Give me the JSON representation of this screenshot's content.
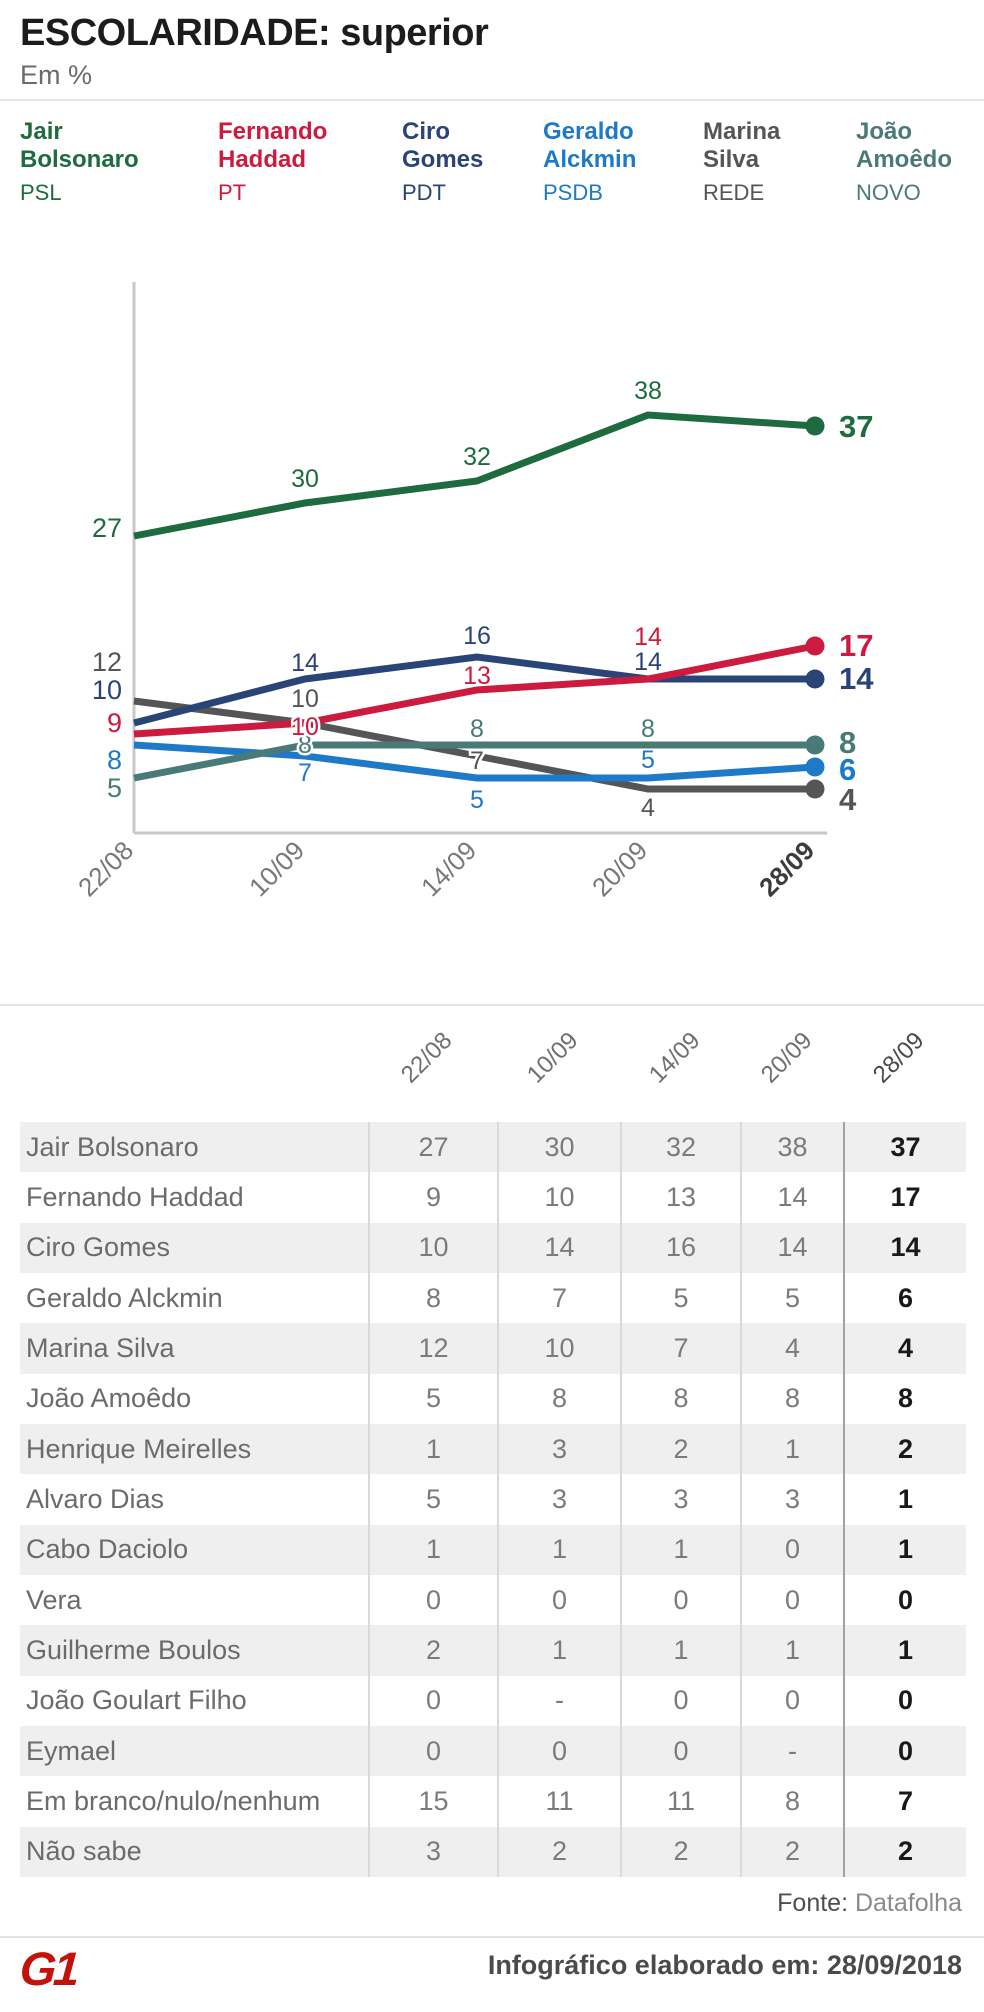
{
  "header": {
    "title": "ESCOLARIDADE: superior",
    "subtitle": "Em %"
  },
  "legend": [
    {
      "name_line1": "Jair",
      "name_line2": "Bolsonaro",
      "party": "PSL",
      "color": "#1e6b40"
    },
    {
      "name_line1": "Fernando",
      "name_line2": "Haddad",
      "party": "PT",
      "color": "#cc1b3f"
    },
    {
      "name_line1": "Ciro",
      "name_line2": "Gomes",
      "party": "PDT",
      "color": "#2a4477"
    },
    {
      "name_line1": "Geraldo",
      "name_line2": "Alckmin",
      "party": "PSDB",
      "color": "#1e79c6"
    },
    {
      "name_line1": "Marina",
      "name_line2": "Silva",
      "party": "REDE",
      "color": "#555555"
    },
    {
      "name_line1": "João",
      "name_line2": "Amoêdo",
      "party": "NOVO",
      "color": "#4a7a77"
    }
  ],
  "chart_data": {
    "type": "line",
    "x": [
      "22/08",
      "10/09",
      "14/09",
      "20/09",
      "28/09"
    ],
    "ylim": [
      0,
      45
    ],
    "grid": false,
    "legend_position": "top",
    "series": [
      {
        "id": "bolsonaro",
        "name": "Jair Bolsonaro",
        "party": "PSL",
        "color": "#1e6b40",
        "values": [
          27,
          30,
          32,
          38,
          37
        ]
      },
      {
        "id": "haddad",
        "name": "Fernando Haddad",
        "party": "PT",
        "color": "#cc1b3f",
        "values": [
          9,
          10,
          13,
          14,
          17
        ]
      },
      {
        "id": "ciro",
        "name": "Ciro Gomes",
        "party": "PDT",
        "color": "#2a4477",
        "values": [
          10,
          14,
          16,
          14,
          14
        ]
      },
      {
        "id": "alckmin",
        "name": "Geraldo Alckmin",
        "party": "PSDB",
        "color": "#1e79c6",
        "values": [
          8,
          7,
          5,
          5,
          6
        ]
      },
      {
        "id": "marina",
        "name": "Marina Silva",
        "party": "REDE",
        "color": "#555555",
        "values": [
          12,
          10,
          7,
          4,
          4
        ]
      },
      {
        "id": "amoedo",
        "name": "João Amoêdo",
        "party": "NOVO",
        "color": "#4a7a77",
        "values": [
          5,
          8,
          8,
          8,
          8
        ]
      }
    ]
  },
  "table": {
    "columns": [
      "22/08",
      "10/09",
      "14/09",
      "20/09",
      "28/09"
    ],
    "rows": [
      {
        "name": "Jair Bolsonaro",
        "values": [
          "27",
          "30",
          "32",
          "38",
          "37"
        ]
      },
      {
        "name": "Fernando Haddad",
        "values": [
          "9",
          "10",
          "13",
          "14",
          "17"
        ]
      },
      {
        "name": "Ciro Gomes",
        "values": [
          "10",
          "14",
          "16",
          "14",
          "14"
        ]
      },
      {
        "name": "Geraldo Alckmin",
        "values": [
          "8",
          "7",
          "5",
          "5",
          "6"
        ]
      },
      {
        "name": "Marina Silva",
        "values": [
          "12",
          "10",
          "7",
          "4",
          "4"
        ]
      },
      {
        "name": "João Amoêdo",
        "values": [
          "5",
          "8",
          "8",
          "8",
          "8"
        ]
      },
      {
        "name": "Henrique Meirelles",
        "values": [
          "1",
          "3",
          "2",
          "1",
          "2"
        ]
      },
      {
        "name": "Alvaro Dias",
        "values": [
          "5",
          "3",
          "3",
          "3",
          "1"
        ]
      },
      {
        "name": "Cabo Daciolo",
        "values": [
          "1",
          "1",
          "1",
          "0",
          "1"
        ]
      },
      {
        "name": "Vera",
        "values": [
          "0",
          "0",
          "0",
          "0",
          "0"
        ]
      },
      {
        "name": "Guilherme Boulos",
        "values": [
          "2",
          "1",
          "1",
          "1",
          "1"
        ]
      },
      {
        "name": "João Goulart Filho",
        "values": [
          "0",
          "-",
          "0",
          "0",
          "0"
        ]
      },
      {
        "name": "Eymael",
        "values": [
          "0",
          "0",
          "0",
          "-",
          "0"
        ]
      },
      {
        "name": "Em branco/nulo/nenhum",
        "values": [
          "15",
          "11",
          "11",
          "8",
          "7"
        ]
      },
      {
        "name": "Não sabe",
        "values": [
          "3",
          "2",
          "2",
          "2",
          "2"
        ]
      }
    ]
  },
  "footer": {
    "source_label": "Fonte:",
    "source": "Datafolha",
    "logo": "G1",
    "credit": "Infográfico elaborado em: 28/09/2018"
  }
}
